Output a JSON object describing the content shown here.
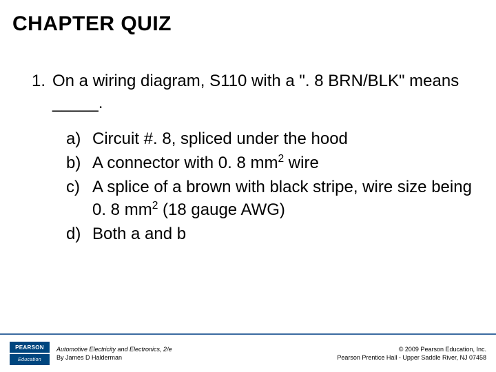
{
  "title": "CHAPTER QUIZ",
  "question": {
    "number": "1.",
    "text": "On a wiring diagram, S110 with a \". 8 BRN/BLK\" means _____."
  },
  "options": {
    "a": {
      "letter": "a)",
      "text": "Circuit #. 8, spliced under the hood"
    },
    "b": {
      "letter": "b)",
      "text_pre": "A connector with 0. 8 mm",
      "sup": "2",
      "text_post": " wire"
    },
    "c": {
      "letter": "c)",
      "text_pre": "A splice of a brown with black stripe, wire size being 0. 8 mm",
      "sup": "2",
      "text_post": " (18 gauge AWG)"
    },
    "d": {
      "letter": "d)",
      "text": "Both a and b"
    }
  },
  "footer": {
    "logo_top": "PEARSON",
    "logo_bottom": "Education",
    "book_title": "Automotive Electricity and Electronics, 2/e",
    "author": "By James D Halderman",
    "copyright": "© 2009 Pearson Education, Inc.",
    "publisher": "Pearson Prentice Hall - Upper Saddle River, NJ 07458"
  },
  "colors": {
    "divider": "#3b6aa0",
    "logo_bg": "#00467f",
    "text": "#000000",
    "bg": "#ffffff"
  }
}
